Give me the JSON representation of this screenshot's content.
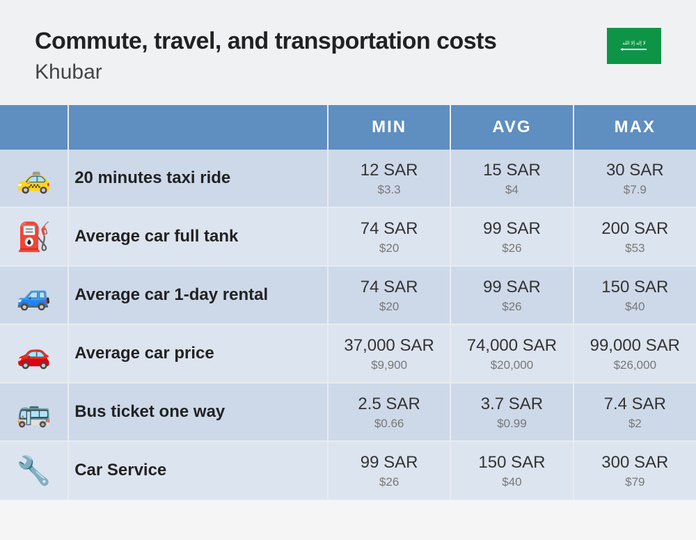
{
  "header": {
    "title": "Commute, travel, and transportation costs",
    "city": "Khubar",
    "flag_bg": "#0e9447"
  },
  "table": {
    "columns": [
      "",
      "",
      "MIN",
      "AVG",
      "MAX"
    ],
    "header_bg": "#5f8ec0",
    "header_color": "#ffffff",
    "row_bg_odd": "#cdd9e9",
    "row_bg_even": "#dce4ef",
    "sar_color": "#333333",
    "usd_color": "#777777",
    "rows": [
      {
        "icon": "🚕",
        "label": "20 minutes taxi ride",
        "min": {
          "sar": "12 SAR",
          "usd": "$3.3"
        },
        "avg": {
          "sar": "15 SAR",
          "usd": "$4"
        },
        "max": {
          "sar": "30 SAR",
          "usd": "$7.9"
        }
      },
      {
        "icon": "⛽",
        "label": "Average car full tank",
        "min": {
          "sar": "74 SAR",
          "usd": "$20"
        },
        "avg": {
          "sar": "99 SAR",
          "usd": "$26"
        },
        "max": {
          "sar": "200 SAR",
          "usd": "$53"
        }
      },
      {
        "icon": "🚙",
        "label": "Average car 1-day rental",
        "min": {
          "sar": "74 SAR",
          "usd": "$20"
        },
        "avg": {
          "sar": "99 SAR",
          "usd": "$26"
        },
        "max": {
          "sar": "150 SAR",
          "usd": "$40"
        }
      },
      {
        "icon": "🚗",
        "label": "Average car price",
        "min": {
          "sar": "37,000 SAR",
          "usd": "$9,900"
        },
        "avg": {
          "sar": "74,000 SAR",
          "usd": "$20,000"
        },
        "max": {
          "sar": "99,000 SAR",
          "usd": "$26,000"
        }
      },
      {
        "icon": "🚌",
        "label": "Bus ticket one way",
        "min": {
          "sar": "2.5 SAR",
          "usd": "$0.66"
        },
        "avg": {
          "sar": "3.7 SAR",
          "usd": "$0.99"
        },
        "max": {
          "sar": "7.4 SAR",
          "usd": "$2"
        }
      },
      {
        "icon": "🔧",
        "label": "Car Service",
        "min": {
          "sar": "99 SAR",
          "usd": "$26"
        },
        "avg": {
          "sar": "150 SAR",
          "usd": "$40"
        },
        "max": {
          "sar": "300 SAR",
          "usd": "$79"
        }
      }
    ]
  }
}
